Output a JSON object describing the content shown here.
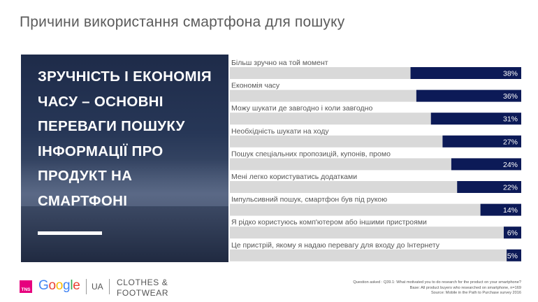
{
  "title": "Причини використання смартфона для пошуку",
  "hero": {
    "headline": "ЗРУЧНІСТЬ І ЕКОНОМІЯ ЧАСУ – ОСНОВНІ ПЕРЕВАГИ ПОШУКУ ІНФОРМАЦІЇ ПРО ПРОДУКТ НА СМАРТФОНІ"
  },
  "chart_data": {
    "type": "bar",
    "orientation": "horizontal",
    "categories": [
      "Більш зручно на той момент",
      "Економія часу",
      "Можу шукати де завгодно і коли завгодно",
      "Необхідність шукати на ходу",
      "Пошук спеціальних пропозицій, купонів, промо",
      "Мені легко користуватись додатками",
      "Імпульсивний пошук, смартфон був під рукою",
      "Я рідко користуюсь комп'ютером або іншими пристроями",
      "Це пристрій, якому я надаю перевагу для входу до Інтернету"
    ],
    "values": [
      38,
      36,
      31,
      27,
      24,
      22,
      14,
      6,
      5
    ],
    "value_labels": [
      "38%",
      "36%",
      "31%",
      "27%",
      "24%",
      "22%",
      "14%",
      "6%",
      "5%"
    ],
    "xlim": [
      0,
      100
    ],
    "bar_color": "#0c1a57",
    "track_color": "#d9d9d9",
    "label_color": "#ffffff"
  },
  "footer": {
    "tns": "TNS",
    "google": [
      {
        "ch": "G",
        "color": "#4285f4"
      },
      {
        "ch": "o",
        "color": "#ea4335"
      },
      {
        "ch": "o",
        "color": "#fbbc05"
      },
      {
        "ch": "g",
        "color": "#4285f4"
      },
      {
        "ch": "l",
        "color": "#34a853"
      },
      {
        "ch": "e",
        "color": "#ea4335"
      }
    ],
    "region": "UA",
    "category": "CLOTHES &\nFOOTWEAR",
    "question": "Question asked : Q39.1: What motivated you to do research for the product on your smartphone?",
    "base": "Base: All product buyers who researched on smartphone, n=169",
    "source": "Source: Mobile in the Path to Purchase survey 2016"
  }
}
